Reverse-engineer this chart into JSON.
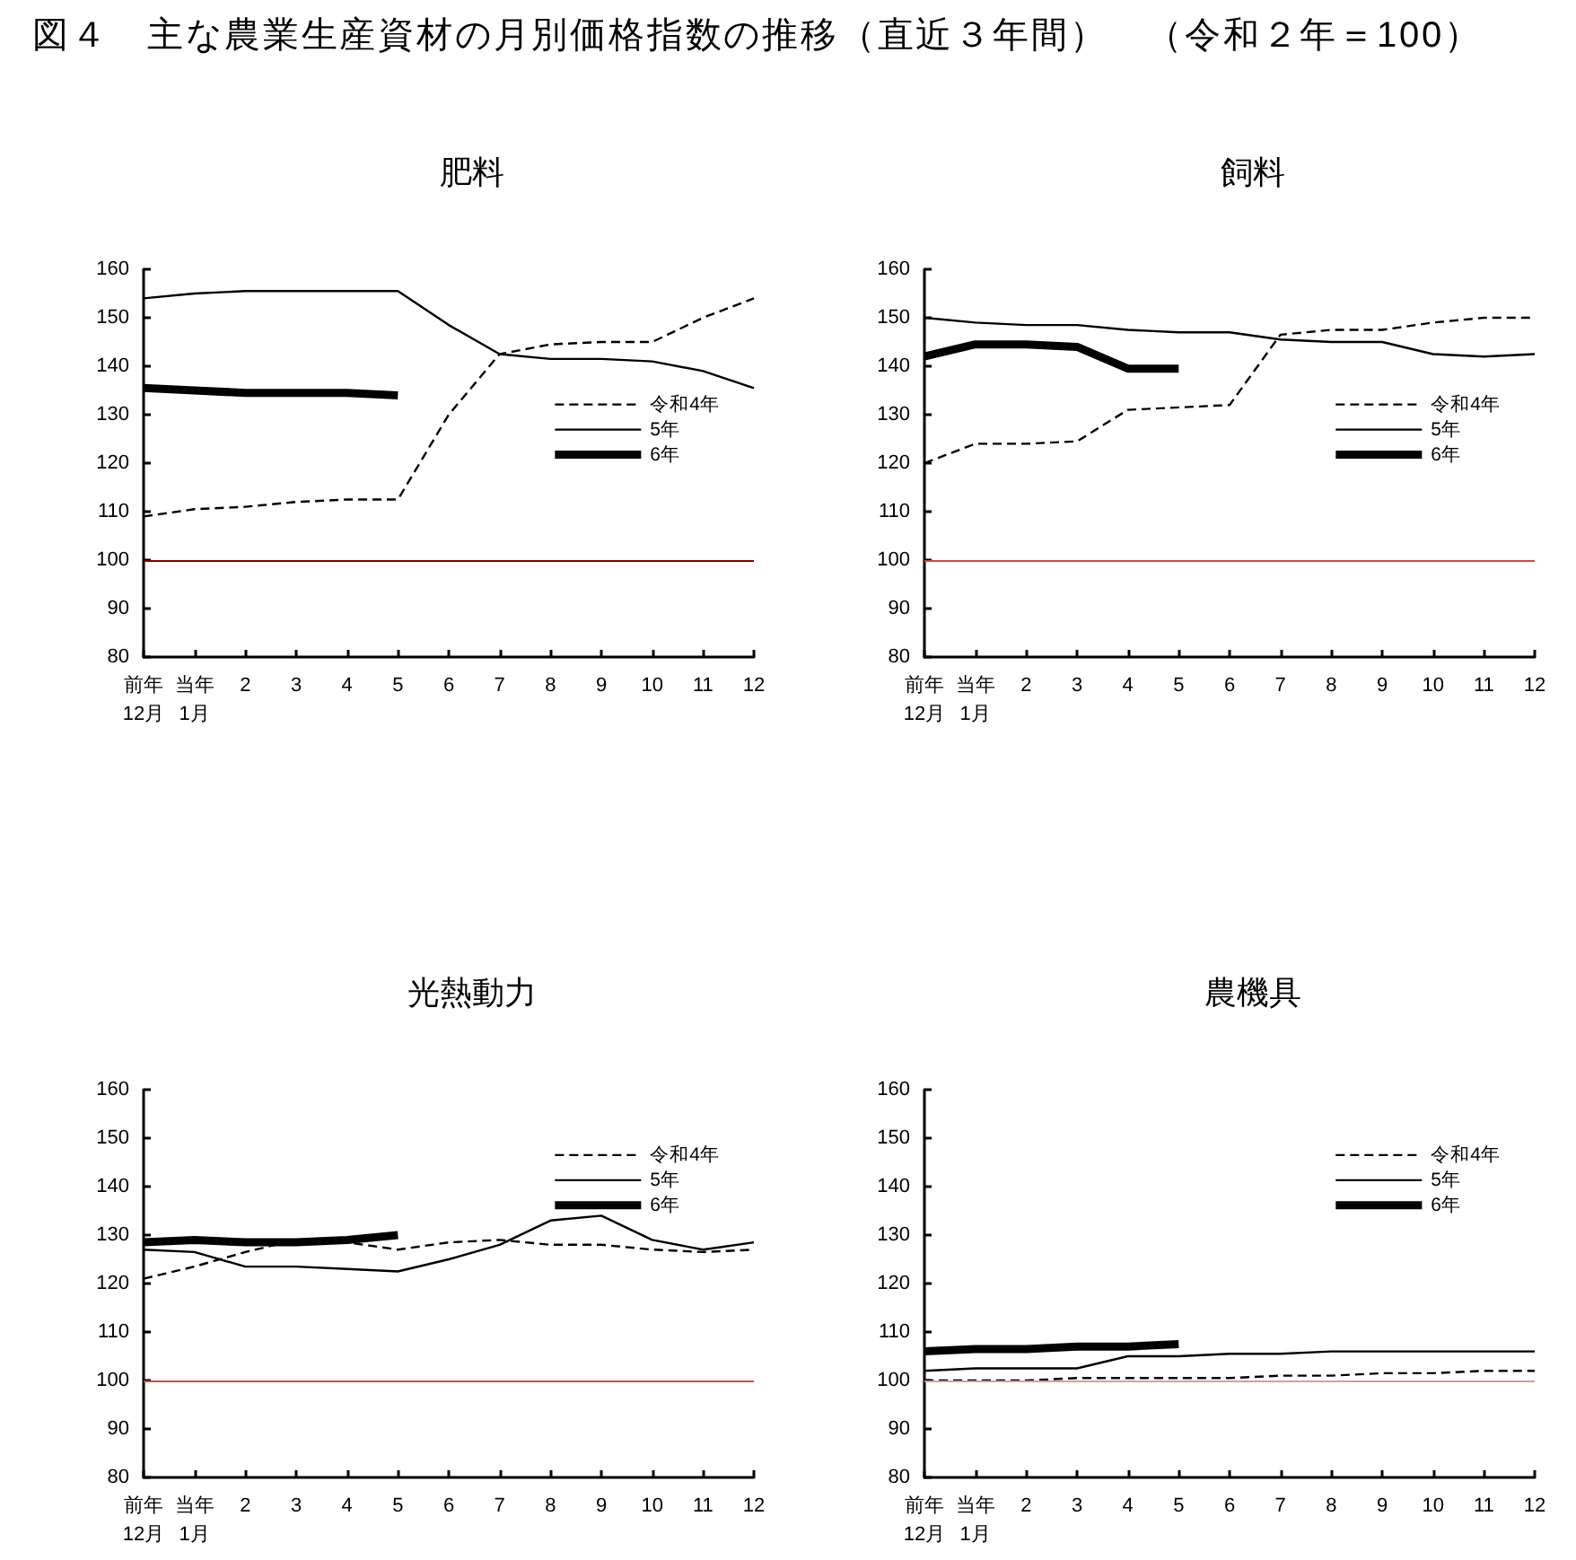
{
  "chart_data": [
    {
      "type": "other",
      "title": "図４　主な農業生産資材の月別価格指数の推移（直近３年間）　（令和２年＝100）"
    },
    {
      "type": "line",
      "title": "肥料",
      "categories": [
        "前年\n12月",
        "当年\n1月",
        "2",
        "3",
        "4",
        "5",
        "6",
        "7",
        "8",
        "9",
        "10",
        "11",
        "12"
      ],
      "series": [
        {
          "name": "令和4年",
          "color": "#000000",
          "line_style": "dashed",
          "values": [
            109,
            110.5,
            111,
            112,
            112.5,
            112.5,
            130,
            142.5,
            144.5,
            145,
            145,
            150,
            154
          ]
        },
        {
          "name": "5年",
          "color": "#000000",
          "line_style": "solid",
          "values": [
            154,
            155,
            155.5,
            155.5,
            155.5,
            155.5,
            148.5,
            142.5,
            141.5,
            141.5,
            141,
            139,
            135.5
          ]
        },
        {
          "name": "6年",
          "color": "#000000",
          "line_style": "solid",
          "values": [
            135.5,
            135,
            134.5,
            134.5,
            134.5,
            134,
            null,
            null,
            null,
            null,
            null,
            null,
            null
          ]
        }
      ],
      "ylim": [
        80,
        160
      ],
      "yticks": [
        80,
        90,
        100,
        110,
        120,
        130,
        140,
        150,
        160
      ],
      "legend": "right",
      "ref_lines": [
        {
          "axis": "y",
          "value": 100,
          "color": "#7f0000"
        }
      ]
    },
    {
      "type": "line",
      "title": "飼料",
      "categories": [
        "前年\n12月",
        "当年\n1月",
        "2",
        "3",
        "4",
        "5",
        "6",
        "7",
        "8",
        "9",
        "10",
        "11",
        "12"
      ],
      "series": [
        {
          "name": "令和4年",
          "color": "#000000",
          "line_style": "dashed",
          "values": [
            120,
            124,
            124,
            124.5,
            131,
            131.5,
            132,
            146.5,
            147.5,
            147.5,
            149,
            150,
            150
          ]
        },
        {
          "name": "5年",
          "color": "#000000",
          "line_style": "solid",
          "values": [
            150,
            149,
            148.5,
            148.5,
            147.5,
            147,
            147,
            145.5,
            145,
            145,
            142.5,
            142,
            142.5
          ]
        },
        {
          "name": "6年",
          "color": "#000000",
          "line_style": "solid",
          "values": [
            142,
            144.5,
            144.5,
            144,
            139.5,
            139.5,
            null,
            null,
            null,
            null,
            null,
            null,
            null
          ]
        }
      ],
      "ylim": [
        80,
        160
      ],
      "yticks": [
        80,
        90,
        100,
        110,
        120,
        130,
        140,
        150,
        160
      ],
      "legend": "right",
      "ref_lines": [
        {
          "axis": "y",
          "value": 100,
          "color": "#c0504d"
        }
      ]
    },
    {
      "type": "line",
      "title": "光熱動力",
      "categories": [
        "前年\n12月",
        "当年\n1月",
        "2",
        "3",
        "4",
        "5",
        "6",
        "7",
        "8",
        "9",
        "10",
        "11",
        "12"
      ],
      "series": [
        {
          "name": "令和4年",
          "color": "#000000",
          "line_style": "dashed",
          "values": [
            121,
            123.5,
            126.5,
            129,
            128.5,
            127,
            128.5,
            129,
            128,
            128,
            127,
            126.5,
            127
          ]
        },
        {
          "name": "5年",
          "color": "#000000",
          "line_style": "solid",
          "values": [
            127,
            126.5,
            123.5,
            123.5,
            123,
            122.5,
            125,
            128,
            133,
            134,
            129,
            127,
            128.5
          ]
        },
        {
          "name": "6年",
          "color": "#000000",
          "line_style": "solid",
          "values": [
            128.5,
            129,
            128.5,
            128.5,
            129,
            130,
            null,
            null,
            null,
            null,
            null,
            null,
            null
          ]
        }
      ],
      "ylim": [
        80,
        160
      ],
      "yticks": [
        80,
        90,
        100,
        110,
        120,
        130,
        140,
        150,
        160
      ],
      "legend": "top right",
      "ref_lines": [
        {
          "axis": "y",
          "value": 100,
          "color": "#c0504d"
        }
      ]
    },
    {
      "type": "line",
      "title": "農機具",
      "categories": [
        "前年\n12月",
        "当年\n1月",
        "2",
        "3",
        "4",
        "5",
        "6",
        "7",
        "8",
        "9",
        "10",
        "11",
        "12"
      ],
      "series": [
        {
          "name": "令和4年",
          "color": "#000000",
          "line_style": "dashed",
          "values": [
            100,
            100,
            100,
            100.5,
            100.5,
            100.5,
            100.5,
            101,
            101,
            101.5,
            101.5,
            102,
            102
          ]
        },
        {
          "name": "5年",
          "color": "#000000",
          "line_style": "solid",
          "values": [
            102,
            102.5,
            102.5,
            102.5,
            105,
            105,
            105.5,
            105.5,
            106,
            106,
            106,
            106,
            106
          ]
        },
        {
          "name": "6年",
          "color": "#000000",
          "line_style": "solid",
          "values": [
            106,
            106.5,
            106.5,
            107,
            107,
            107.5,
            null,
            null,
            null,
            null,
            null,
            null,
            null
          ]
        }
      ],
      "ylim": [
        80,
        160
      ],
      "yticks": [
        80,
        90,
        100,
        110,
        120,
        130,
        140,
        150,
        160
      ],
      "legend": "top right",
      "ref_lines": [
        {
          "axis": "y",
          "value": 100,
          "color": "#c9a3a3"
        }
      ]
    }
  ]
}
